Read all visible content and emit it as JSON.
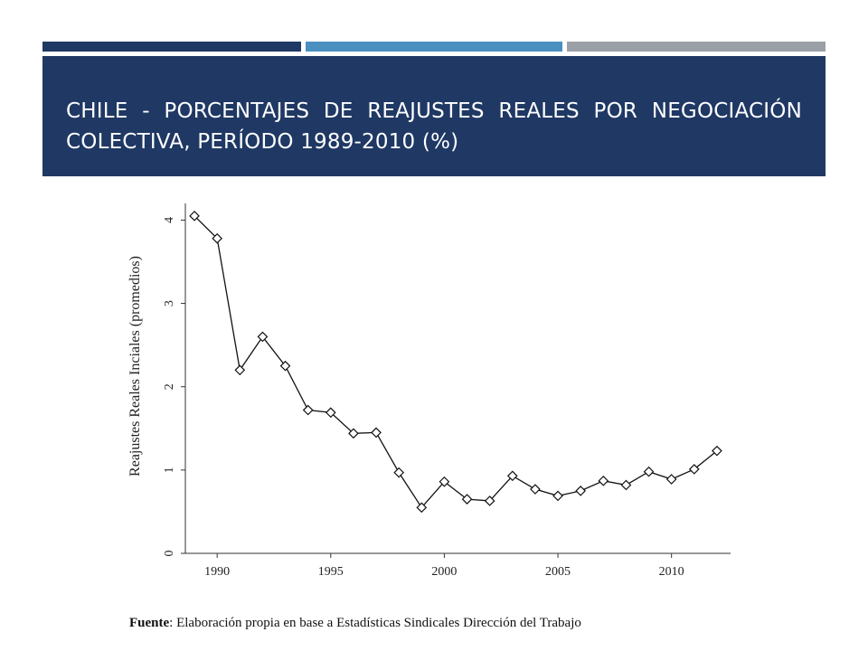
{
  "slide": {
    "title": "CHILE - PORCENTAJES DE REAJUSTES REALES POR NEGOCIACIÓN COLECTIVA, PERÍODO 1989-2010 (%)",
    "accent_colors": [
      "#1f3864",
      "#4a8fc0",
      "#9aa0a6"
    ]
  },
  "source": {
    "label": "Fuente",
    "text": ": Elaboración propia en base a Estadísticas Sindicales Dirección del Trabajo"
  },
  "chart_data": {
    "type": "line",
    "title": "",
    "xlabel": "",
    "ylabel": "Reajustes Reales Inciales (promedios)",
    "xlim": [
      1988.6,
      2012.6
    ],
    "ylim": [
      0,
      4.2
    ],
    "xticks": [
      1990,
      1995,
      2000,
      2005,
      2010
    ],
    "yticks": [
      0,
      1,
      2,
      3,
      4
    ],
    "grid": false,
    "marker": "diamond",
    "x": [
      1989,
      1990,
      1991,
      1992,
      1993,
      1994,
      1995,
      1996,
      1997,
      1998,
      1999,
      2000,
      2001,
      2002,
      2003,
      2004,
      2005,
      2006,
      2007,
      2008,
      2009,
      2010,
      2011,
      2012
    ],
    "y": [
      4.05,
      3.78,
      2.2,
      2.6,
      2.25,
      1.72,
      1.69,
      1.44,
      1.45,
      0.97,
      0.55,
      0.86,
      0.65,
      0.63,
      0.93,
      0.77,
      0.69,
      0.75,
      0.87,
      0.82,
      0.98,
      0.89,
      1.01,
      1.23
    ]
  }
}
